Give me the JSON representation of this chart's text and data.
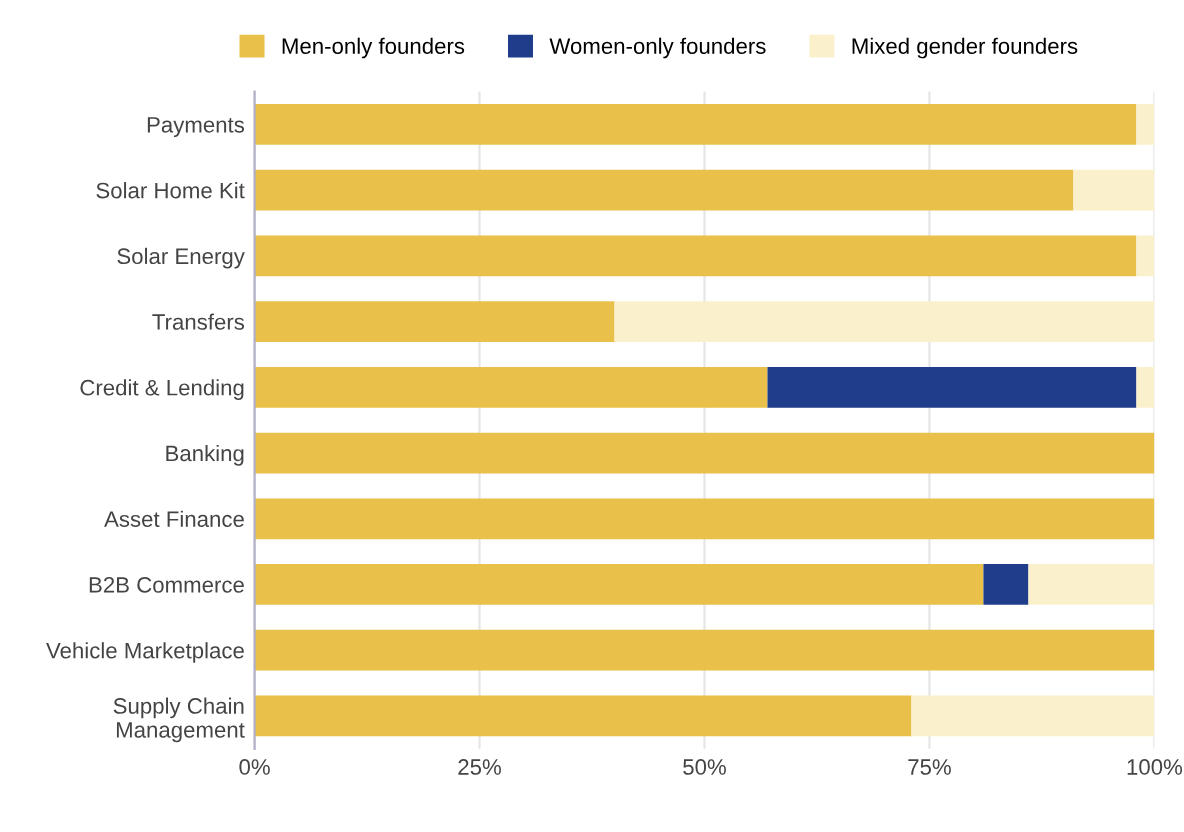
{
  "chart_data": {
    "type": "bar",
    "orientation": "horizontal",
    "stacked": true,
    "categories": [
      "Payments",
      "Solar Home Kit",
      "Solar Energy",
      "Transfers",
      "Credit & Lending",
      "Banking",
      "Asset Finance",
      "B2B Commerce",
      "Vehicle Marketplace",
      "Supply Chain\nManagement"
    ],
    "series": [
      {
        "name": "Men-only founders",
        "color": "#e8c04a",
        "values": [
          98,
          91,
          98,
          40,
          57,
          100,
          100,
          81,
          100,
          73
        ]
      },
      {
        "name": "Women-only founders",
        "color": "#1f3d8a",
        "values": [
          0,
          0,
          0,
          0,
          41,
          0,
          0,
          5,
          0,
          0
        ]
      },
      {
        "name": "Mixed gender founders",
        "color": "#fbf0cc",
        "values": [
          2,
          9,
          2,
          60,
          2,
          0,
          0,
          14,
          0,
          27
        ]
      }
    ],
    "xlim": [
      0,
      100
    ],
    "xticks": [
      {
        "value": 0,
        "label": "0%"
      },
      {
        "value": 25,
        "label": "25%"
      },
      {
        "value": 50,
        "label": "50%"
      },
      {
        "value": 75,
        "label": "75%"
      },
      {
        "value": 100,
        "label": "100%"
      }
    ],
    "grid": "x",
    "legend": "top"
  }
}
